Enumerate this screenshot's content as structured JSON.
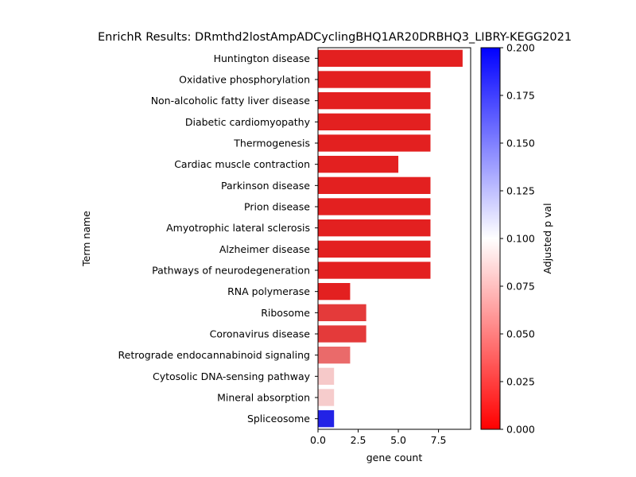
{
  "chart_data": {
    "type": "bar",
    "orientation": "horizontal",
    "title": "EnrichR Results: DRmthd2lostAmpADCyclingBHQ1AR20DRBHQ3_LIBRY-KEGG2021",
    "xlabel": "gene count",
    "ylabel": "Term name",
    "xlim": [
      0,
      9.5
    ],
    "xticks": [
      "0.0",
      "2.5",
      "5.0",
      "7.5"
    ],
    "xtick_values": [
      0,
      2.5,
      5,
      7.5
    ],
    "categories": [
      "Huntington disease",
      "Oxidative phosphorylation",
      "Non-alcoholic fatty liver disease",
      "Diabetic cardiomyopathy",
      "Thermogenesis",
      "Cardiac muscle contraction",
      "Parkinson disease",
      "Prion disease",
      "Amyotrophic lateral sclerosis",
      "Alzheimer disease",
      "Pathways of neurodegeneration",
      "RNA polymerase",
      "Ribosome",
      "Coronavirus disease",
      "Retrograde endocannabinoid signaling",
      "Cytosolic DNA-sensing pathway",
      "Mineral absorption",
      "Spliceosome"
    ],
    "values": [
      9,
      7,
      7,
      7,
      7,
      5,
      7,
      7,
      7,
      7,
      7,
      2,
      3,
      3,
      2,
      1,
      1,
      1
    ],
    "colors": [
      "#e32020",
      "#e32020",
      "#e32020",
      "#e32020",
      "#e32020",
      "#e32020",
      "#e32020",
      "#e32020",
      "#e32020",
      "#e32020",
      "#e32020",
      "#e32020",
      "#e43a3a",
      "#e43a3a",
      "#ea6a6a",
      "#f6c9c9",
      "#f6cccc",
      "#2222e6"
    ],
    "colorbar": {
      "label": "Adjusted p val",
      "range": [
        0,
        0.2
      ],
      "ticks": [
        "0.000",
        "0.025",
        "0.050",
        "0.075",
        "0.100",
        "0.125",
        "0.150",
        "0.175",
        "0.200"
      ],
      "tick_values": [
        0,
        0.025,
        0.05,
        0.075,
        0.1,
        0.125,
        0.15,
        0.175,
        0.2
      ],
      "colormap": [
        "#ff0000",
        "#ffffff",
        "#0000ff"
      ]
    },
    "grid": false
  }
}
